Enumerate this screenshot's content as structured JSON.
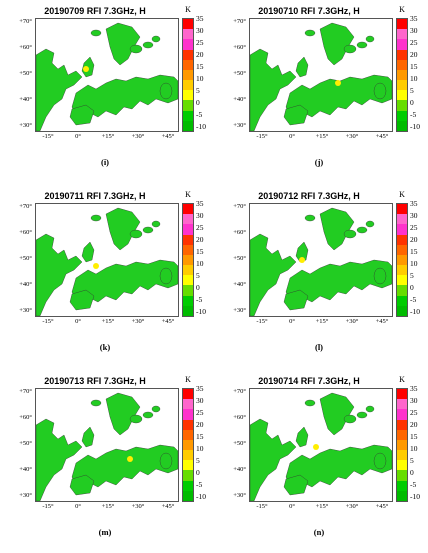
{
  "colorbar": {
    "unit": "K",
    "ticks": [
      "35",
      "30",
      "25",
      "20",
      "15",
      "10",
      "5",
      "0",
      "-5",
      "-10"
    ],
    "colors": [
      "#ff0000",
      "#ff66cc",
      "#ff33cc",
      "#ff3300",
      "#ff6600",
      "#ff9900",
      "#ffcc00",
      "#ffff00",
      "#66dd00",
      "#00cc00",
      "#00bb00"
    ]
  },
  "axes": {
    "yticks": [
      "+70",
      "+60",
      "+50",
      "+40",
      "+30"
    ],
    "xticks": [
      "-15",
      "0",
      "+15",
      "+30",
      "+45"
    ]
  },
  "panels": [
    {
      "title": "20190709 RFI 7.3GHz, H",
      "label": "(i)"
    },
    {
      "title": "20190710 RFI 7.3GHz, H",
      "label": "(j)"
    },
    {
      "title": "20190711 RFI 7.3GHz, H",
      "label": "(k)"
    },
    {
      "title": "20190712 RFI 7.3GHz, H",
      "label": "(l)"
    },
    {
      "title": "20190713 RFI 7.3GHz, H",
      "label": "(m)"
    },
    {
      "title": "20190714 RFI 7.3GHz, H",
      "label": "(n)"
    }
  ]
}
